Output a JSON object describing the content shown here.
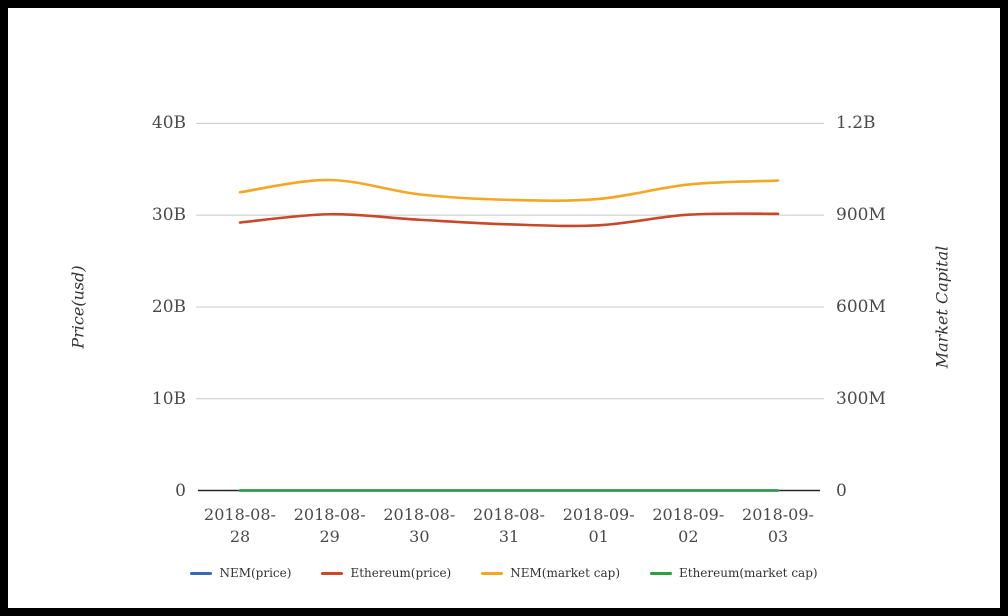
{
  "frame": {
    "border_color": "#000000",
    "background_color": "#ffffff"
  },
  "chart_data": {
    "type": "line",
    "title": "",
    "grid": true,
    "legend_position": "bottom",
    "x_categories": [
      "2018-08-28",
      "2018-08-29",
      "2018-08-30",
      "2018-08-31",
      "2018-09-01",
      "2018-09-02",
      "2018-09-03"
    ],
    "left_axis": {
      "title": "Price(usd)",
      "tick_labels": [
        "0",
        "10B",
        "20B",
        "30B",
        "40B"
      ],
      "tick_values": [
        0,
        10,
        20,
        30,
        40
      ],
      "max": 40,
      "unit": "billions USD"
    },
    "right_axis": {
      "title": "Market Capital",
      "tick_labels": [
        "0",
        "300M",
        "600M",
        "900M",
        "1.2B"
      ],
      "tick_values": [
        0,
        300,
        600,
        900,
        1200
      ],
      "max": 1200,
      "unit": "millions USD"
    },
    "series": [
      {
        "name": "NEM(price)",
        "color": "#3a66b5",
        "axis": "left",
        "values": [
          0,
          0,
          0,
          0,
          0,
          0,
          0
        ]
      },
      {
        "name": "Ethereum(price)",
        "color": "#c9482a",
        "axis": "left",
        "values": [
          29.2,
          30.1,
          29.5,
          29.0,
          28.9,
          30.05,
          30.15
        ]
      },
      {
        "name": "NEM(market cap)",
        "color": "#f5a623",
        "axis": "right",
        "values": [
          975,
          1015,
          968,
          950,
          953,
          1000,
          1013
        ]
      },
      {
        "name": "Ethereum(market cap)",
        "color": "#2e9e44",
        "axis": "right",
        "values": [
          0,
          0,
          0,
          0,
          0,
          0,
          0
        ]
      }
    ],
    "colors": {
      "gridline": "#c9c9c9",
      "axis_line": "#262626",
      "tick_text": "#4a4a4a",
      "legend_text": "#333333"
    }
  }
}
